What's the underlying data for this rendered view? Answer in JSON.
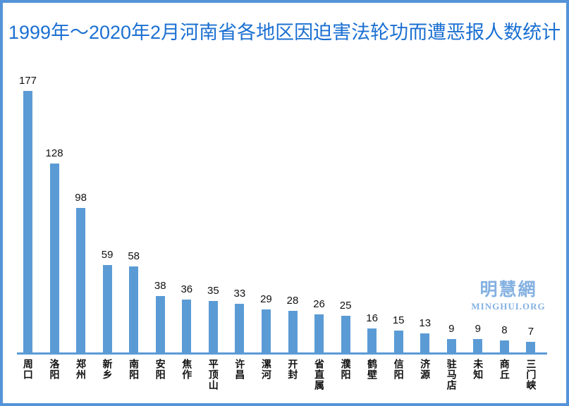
{
  "chart_data": {
    "type": "bar",
    "title": "1999年～2020年2月河南省各地区因迫害法轮功而遭恶报人数统计",
    "categories": [
      "周口",
      "洛阳",
      "郑州",
      "新乡",
      "南阳",
      "安阳",
      "焦作",
      "平顶山",
      "许昌",
      "漯河",
      "开封",
      "省直属",
      "濮阳",
      "鹤壁",
      "信阳",
      "济源",
      "驻马店",
      "未知",
      "商丘",
      "三门峡"
    ],
    "values": [
      177,
      128,
      98,
      59,
      58,
      38,
      36,
      35,
      33,
      29,
      28,
      26,
      25,
      16,
      15,
      13,
      9,
      9,
      8,
      7
    ],
    "xlabel": "",
    "ylabel": "",
    "ylim": [
      0,
      190
    ],
    "grid": false,
    "legend": "none",
    "data_labels": true,
    "bar_color": "#5b9bd5",
    "axis_color": "#5b9bd5",
    "title_color": "#1b70d2",
    "frame_border_color": "#5493d8"
  },
  "watermark": {
    "line1": "明慧網",
    "line2": "MINGHUI.ORG",
    "color": "#84b1e1"
  }
}
